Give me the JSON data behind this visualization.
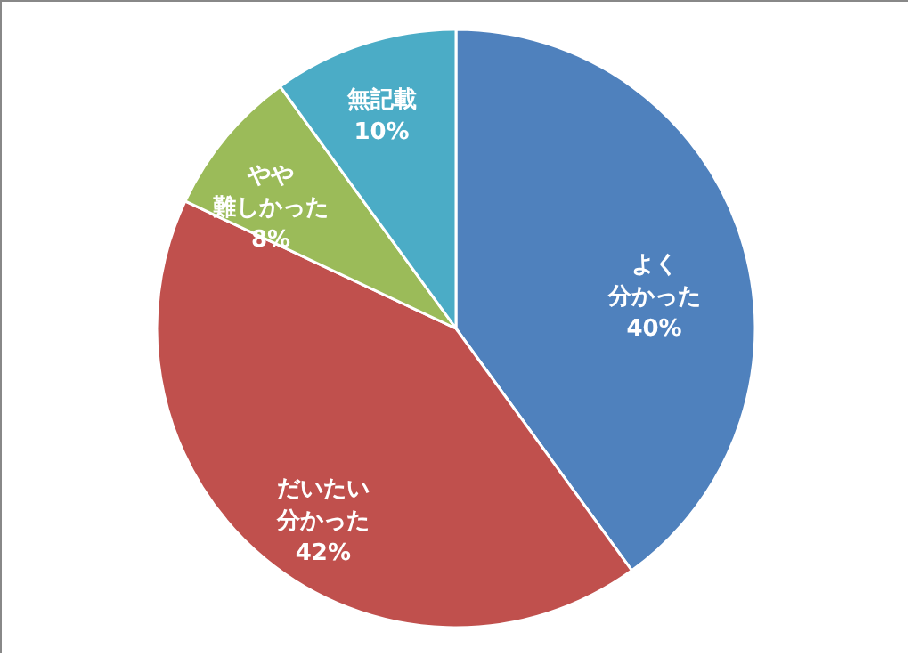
{
  "chart_data": {
    "type": "pie",
    "categories": [
      "よく分かった",
      "だいたい分かった",
      "やや難しかった",
      "無記載"
    ],
    "values": [
      40,
      42,
      8,
      10
    ],
    "value_labels": [
      "40%",
      "42%",
      "8%",
      "10%"
    ],
    "colors": [
      "#4f81bd",
      "#c0504d",
      "#9bbb59",
      "#4bacc6"
    ]
  }
}
